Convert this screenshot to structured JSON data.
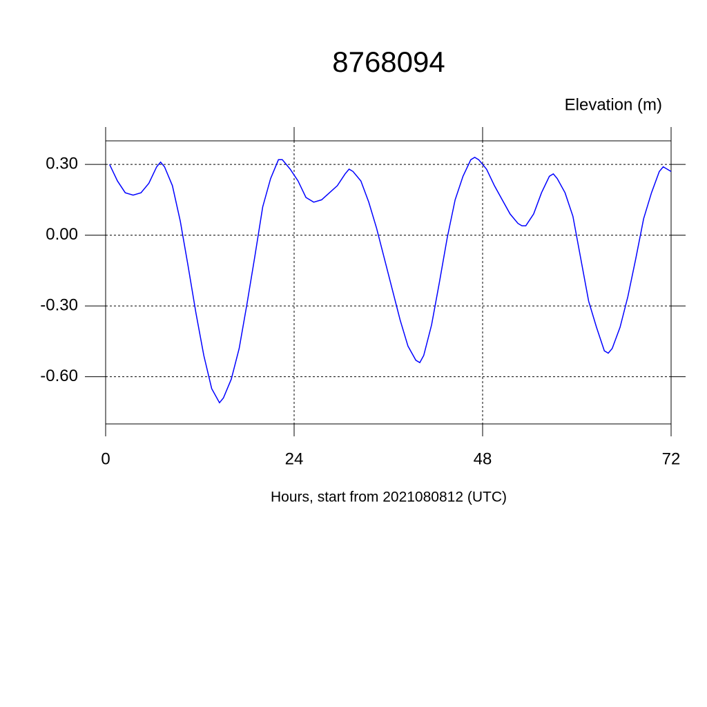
{
  "chart_data": {
    "type": "line",
    "title": "8768094",
    "y_label": "Elevation (m)",
    "x_label": "Hours, start from 2021080812 (UTC)",
    "x": [
      0.5,
      1.5,
      2.5,
      3.5,
      4.5,
      5.5,
      6.5,
      7.0,
      7.5,
      8.5,
      9.5,
      10.5,
      11.5,
      12.5,
      13.5,
      14.5,
      15.0,
      16.0,
      17.0,
      18.0,
      19.0,
      20.0,
      21.0,
      22.0,
      22.5,
      23.5,
      24.5,
      25.5,
      26.5,
      27.5,
      28.5,
      29.5,
      30.5,
      31.0,
      31.5,
      32.5,
      33.5,
      34.5,
      35.5,
      36.5,
      37.5,
      38.5,
      39.5,
      40.0,
      40.5,
      41.5,
      42.5,
      43.5,
      44.5,
      45.5,
      46.5,
      47.0,
      47.5,
      48.5,
      49.5,
      50.5,
      51.5,
      52.5,
      53.0,
      53.5,
      54.5,
      55.5,
      56.5,
      57.0,
      57.5,
      58.5,
      59.5,
      60.5,
      61.5,
      62.5,
      63.5,
      64.0,
      64.5,
      65.5,
      66.5,
      67.5,
      68.5,
      69.5,
      70.5,
      71.0,
      71.5,
      72.0
    ],
    "series": [
      {
        "color": "#0000ff",
        "values": [
          0.3,
          0.23,
          0.18,
          0.17,
          0.18,
          0.22,
          0.29,
          0.31,
          0.29,
          0.21,
          0.06,
          -0.13,
          -0.33,
          -0.51,
          -0.65,
          -0.71,
          -0.69,
          -0.61,
          -0.48,
          -0.29,
          -0.09,
          0.12,
          0.24,
          0.32,
          0.32,
          0.28,
          0.23,
          0.16,
          0.14,
          0.15,
          0.18,
          0.21,
          0.26,
          0.28,
          0.27,
          0.23,
          0.14,
          0.03,
          -0.1,
          -0.23,
          -0.36,
          -0.47,
          -0.53,
          -0.54,
          -0.51,
          -0.38,
          -0.2,
          -0.01,
          0.15,
          0.25,
          0.32,
          0.33,
          0.32,
          0.28,
          0.21,
          0.15,
          0.09,
          0.05,
          0.04,
          0.04,
          0.09,
          0.18,
          0.25,
          0.26,
          0.24,
          0.18,
          0.08,
          -0.1,
          -0.28,
          -0.39,
          -0.49,
          -0.5,
          -0.48,
          -0.39,
          -0.26,
          -0.1,
          0.07,
          0.18,
          0.27,
          0.29,
          0.28,
          0.27
        ]
      }
    ],
    "xlim": [
      0,
      72
    ],
    "xticks": [
      0,
      24,
      48,
      72
    ],
    "ylim": [
      -0.8,
      0.4
    ],
    "yticks": [
      {
        "value": 0.3,
        "label": "0.30"
      },
      {
        "value": 0.0,
        "label": "0.00"
      },
      {
        "value": -0.3,
        "label": "-0.30"
      },
      {
        "value": -0.6,
        "label": "-0.60"
      }
    ],
    "grid": true
  }
}
